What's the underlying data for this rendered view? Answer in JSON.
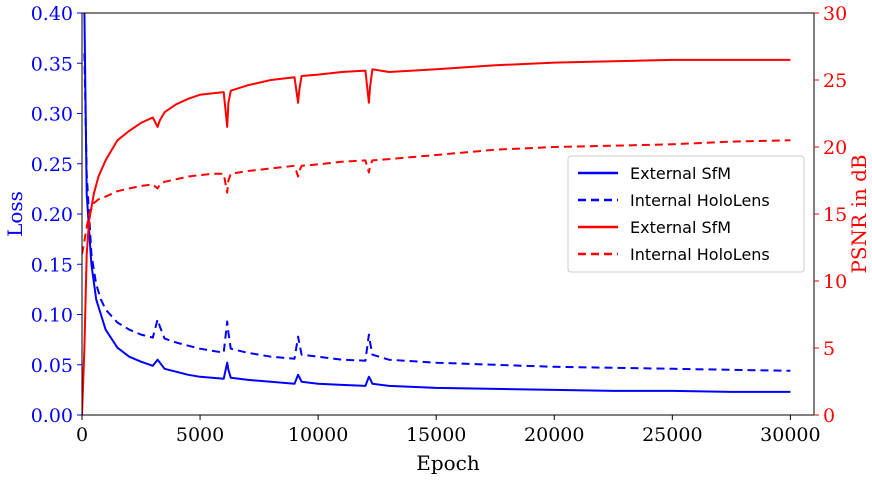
{
  "chart_data": {
    "type": "line",
    "title": "",
    "xlabel": "Epoch",
    "ylabel_left": "Loss",
    "ylabel_right": "PSNR in dB",
    "xlim": [
      0,
      31000
    ],
    "ylim_left": [
      0,
      0.4
    ],
    "ylim_right": [
      0,
      30
    ],
    "x_ticks": [
      0,
      5000,
      10000,
      15000,
      20000,
      25000,
      30000
    ],
    "y_left_ticks": [
      "0.00",
      "0.05",
      "0.10",
      "0.15",
      "0.20",
      "0.25",
      "0.30",
      "0.35",
      "0.40"
    ],
    "y_right_ticks": [
      "0",
      "5",
      "10",
      "15",
      "20",
      "25",
      "30"
    ],
    "grid": false,
    "legend_position": "center-right",
    "colors": {
      "loss": "#0000ff",
      "psnr": "#ff0000"
    },
    "series": [
      {
        "name": "External SfM",
        "axis": "left",
        "color": "#0000ff",
        "style": "solid",
        "x": [
          100,
          200,
          400,
          600,
          800,
          1000,
          1500,
          2000,
          2500,
          3000,
          3200,
          3300,
          3500,
          4000,
          4500,
          5000,
          5500,
          6000,
          6150,
          6200,
          6300,
          7000,
          8000,
          9000,
          9150,
          9200,
          9300,
          10000,
          11000,
          12000,
          12150,
          12200,
          12300,
          13000,
          15000,
          17500,
          20000,
          22500,
          25000,
          27500,
          30000
        ],
        "y": [
          0.4,
          0.22,
          0.15,
          0.115,
          0.1,
          0.085,
          0.067,
          0.058,
          0.053,
          0.049,
          0.055,
          0.052,
          0.046,
          0.043,
          0.04,
          0.038,
          0.037,
          0.036,
          0.052,
          0.045,
          0.037,
          0.035,
          0.033,
          0.031,
          0.04,
          0.038,
          0.033,
          0.031,
          0.03,
          0.029,
          0.038,
          0.036,
          0.031,
          0.029,
          0.027,
          0.026,
          0.025,
          0.024,
          0.024,
          0.023,
          0.023
        ]
      },
      {
        "name": "Internal HoloLens",
        "axis": "left",
        "color": "#0000ff",
        "style": "dashed",
        "x": [
          100,
          200,
          400,
          600,
          800,
          1000,
          1500,
          2000,
          2500,
          3000,
          3200,
          3300,
          3500,
          4000,
          4500,
          5000,
          5500,
          6000,
          6150,
          6200,
          6300,
          7000,
          8000,
          9000,
          9150,
          9200,
          9300,
          10000,
          11000,
          12000,
          12150,
          12200,
          12300,
          13000,
          15000,
          17500,
          20000,
          22500,
          25000,
          27500,
          30000
        ],
        "y": [
          0.36,
          0.24,
          0.16,
          0.13,
          0.115,
          0.105,
          0.092,
          0.085,
          0.08,
          0.077,
          0.095,
          0.088,
          0.076,
          0.072,
          0.069,
          0.066,
          0.064,
          0.062,
          0.093,
          0.082,
          0.066,
          0.062,
          0.058,
          0.056,
          0.078,
          0.072,
          0.06,
          0.058,
          0.055,
          0.054,
          0.08,
          0.072,
          0.06,
          0.055,
          0.052,
          0.05,
          0.048,
          0.047,
          0.046,
          0.045,
          0.044
        ]
      },
      {
        "name": "External SfM",
        "axis": "right",
        "color": "#ff0000",
        "style": "solid",
        "x": [
          0,
          100,
          200,
          300,
          500,
          700,
          1000,
          1500,
          2000,
          2500,
          3000,
          3200,
          3300,
          3500,
          4000,
          4500,
          5000,
          5500,
          6000,
          6150,
          6200,
          6300,
          7000,
          8000,
          9000,
          9150,
          9200,
          9300,
          10000,
          11000,
          12000,
          12150,
          12200,
          12300,
          13000,
          15000,
          17500,
          20000,
          22500,
          25000,
          27500,
          30000
        ],
        "y": [
          0,
          5,
          12,
          14.5,
          16.5,
          17.8,
          19,
          20.5,
          21.2,
          21.8,
          22.2,
          21.5,
          22,
          22.6,
          23.2,
          23.6,
          23.9,
          24,
          24.1,
          21.5,
          23.3,
          24.2,
          24.6,
          25,
          25.2,
          23.3,
          24.2,
          25.3,
          25.4,
          25.6,
          25.7,
          23.3,
          24.5,
          25.8,
          25.6,
          25.8,
          26.1,
          26.3,
          26.4,
          26.5,
          26.5,
          26.5
        ]
      },
      {
        "name": "Internal HoloLens",
        "axis": "right",
        "color": "#ff0000",
        "style": "dashed",
        "x": [
          0,
          100,
          200,
          300,
          500,
          700,
          1000,
          1500,
          2000,
          2500,
          3000,
          3200,
          3300,
          3500,
          4000,
          4500,
          5000,
          5500,
          6000,
          6150,
          6200,
          6300,
          7000,
          8000,
          9000,
          9150,
          9200,
          9300,
          10000,
          11000,
          12000,
          12150,
          12200,
          12300,
          13000,
          15000,
          17500,
          20000,
          22500,
          25000,
          27500,
          30000
        ],
        "y": [
          12,
          13,
          14,
          15,
          15.8,
          16.1,
          16.3,
          16.7,
          16.9,
          17.1,
          17.2,
          16.9,
          17.2,
          17.4,
          17.6,
          17.8,
          17.9,
          18,
          18,
          16.6,
          17.5,
          18,
          18.2,
          18.4,
          18.6,
          17.8,
          18.2,
          18.6,
          18.7,
          18.9,
          19,
          18.1,
          18.6,
          19,
          19.1,
          19.4,
          19.8,
          20,
          20.1,
          20.2,
          20.4,
          20.5
        ]
      }
    ]
  }
}
